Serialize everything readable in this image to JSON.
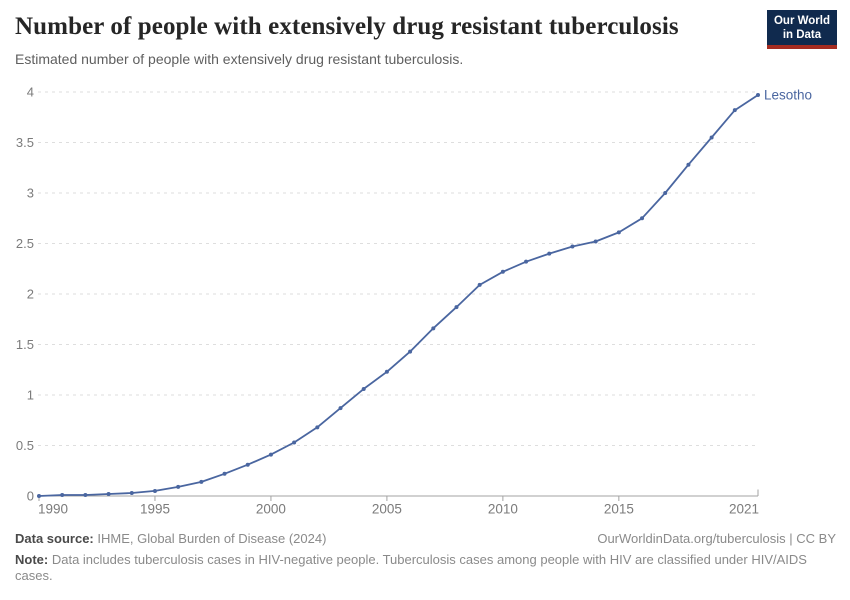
{
  "header": {
    "title": "Number of people with extensively drug resistant tuberculosis",
    "subtitle": "Estimated number of people with extensively drug resistant tuberculosis.",
    "logo": {
      "line1": "Our World",
      "line2": "in Data"
    }
  },
  "colors": {
    "line": "#4a66a0",
    "logo_navy": "#102a4e",
    "logo_red": "#a52c21",
    "gridline": "#dedede",
    "axis": "#a3a3a3",
    "tick_label": "#7b7b7b"
  },
  "chart_data": {
    "type": "line",
    "title": "Number of people with extensively drug resistant tuberculosis",
    "x": [
      1990,
      1991,
      1992,
      1993,
      1994,
      1995,
      1996,
      1997,
      1998,
      1999,
      2000,
      2001,
      2002,
      2003,
      2004,
      2005,
      2006,
      2007,
      2008,
      2009,
      2010,
      2011,
      2012,
      2013,
      2014,
      2015,
      2016,
      2017,
      2018,
      2019,
      2020,
      2021
    ],
    "series": [
      {
        "name": "Lesotho",
        "values": [
          0.0,
          0.01,
          0.01,
          0.02,
          0.03,
          0.05,
          0.09,
          0.14,
          0.22,
          0.31,
          0.41,
          0.53,
          0.68,
          0.87,
          1.06,
          1.23,
          1.43,
          1.66,
          1.87,
          2.09,
          2.22,
          2.32,
          2.4,
          2.47,
          2.52,
          2.61,
          2.75,
          3.0,
          3.28,
          3.55,
          3.82,
          3.97
        ]
      }
    ],
    "xlabel": "",
    "ylabel": "",
    "xlim": [
      1990,
      2021
    ],
    "ylim": [
      0,
      4
    ],
    "x_ticks": [
      1990,
      1995,
      2000,
      2005,
      2010,
      2015,
      2021
    ],
    "y_ticks": [
      0,
      0.5,
      1,
      1.5,
      2,
      2.5,
      3,
      3.5,
      4
    ],
    "grid": "dashed-horizontal",
    "legend": "end-of-line-label"
  },
  "footer": {
    "source_label": "Data source:",
    "source_value": "IHME, Global Burden of Disease (2024)",
    "attribution": "OurWorldinData.org/tuberculosis | CC BY",
    "note_label": "Note:",
    "note_text": "Data includes tuberculosis cases in HIV-negative people. Tuberculosis cases among people with HIV are classified under HIV/AIDS cases."
  }
}
